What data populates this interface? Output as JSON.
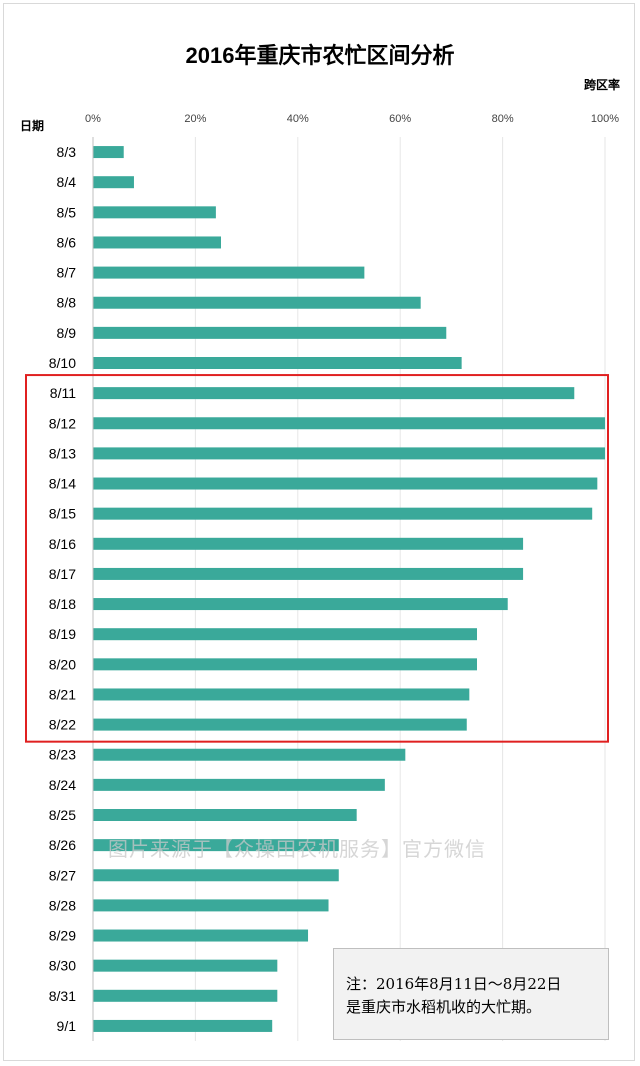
{
  "chart_data": {
    "type": "bar",
    "orientation": "horizontal",
    "title": "2016年重庆市农忙区间分析",
    "xlabel": "跨区率",
    "ylabel": "日期",
    "xlim": [
      0,
      100
    ],
    "x_ticks": [
      "0%",
      "20%",
      "40%",
      "60%",
      "80%",
      "100%"
    ],
    "categories": [
      "8/3",
      "8/4",
      "8/5",
      "8/6",
      "8/7",
      "8/8",
      "8/9",
      "8/10",
      "8/11",
      "8/12",
      "8/13",
      "8/14",
      "8/15",
      "8/16",
      "8/17",
      "8/18",
      "8/19",
      "8/20",
      "8/21",
      "8/22",
      "8/23",
      "8/24",
      "8/25",
      "8/26",
      "8/27",
      "8/28",
      "8/29",
      "8/30",
      "8/31",
      "9/1"
    ],
    "values": [
      6,
      8,
      24,
      25,
      53,
      64,
      69,
      72,
      94,
      100,
      100,
      98.5,
      97.5,
      84,
      84,
      81,
      75,
      75,
      73.5,
      73,
      61,
      57,
      51.5,
      48,
      48,
      46,
      42,
      36,
      36,
      35
    ],
    "bar_color": "#3aa99a",
    "grid": true,
    "highlight_range": [
      "8/11",
      "8/22"
    ],
    "highlight_color": "#e02020"
  },
  "note": {
    "line1": "注：2016年8月11日～8月22日",
    "line2": "是重庆市水稻机收的大忙期。"
  },
  "watermark": "图片来源于【众操田农机服务】官方微信"
}
